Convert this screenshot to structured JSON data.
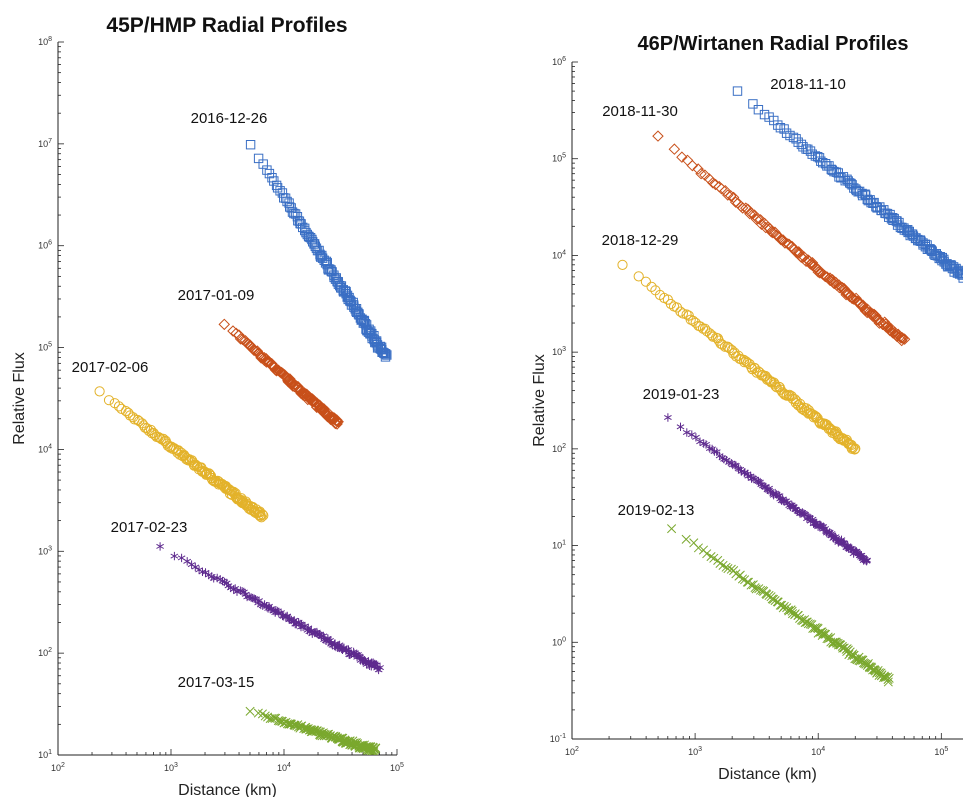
{
  "chart_data": [
    {
      "type": "scatter",
      "title": "45P/HMP Radial Profiles",
      "xlabel": "Distance (km)",
      "ylabel": "Relative Flux",
      "xscale": "log",
      "yscale": "log",
      "xlim": [
        100,
        100000
      ],
      "ylim": [
        10,
        100000000
      ],
      "xticks": [
        {
          "v": 100,
          "e": "2"
        },
        {
          "v": 1000,
          "e": "3"
        },
        {
          "v": 10000,
          "e": "4"
        },
        {
          "v": 100000,
          "e": "5"
        }
      ],
      "yticks": [
        {
          "v": 10,
          "e": "1"
        },
        {
          "v": 100,
          "e": "2"
        },
        {
          "v": 1000,
          "e": "3"
        },
        {
          "v": 10000,
          "e": "4"
        },
        {
          "v": 100000,
          "e": "5"
        },
        {
          "v": 1000000,
          "e": "6"
        },
        {
          "v": 10000000,
          "e": "7"
        },
        {
          "v": 100000000,
          "e": "8"
        }
      ],
      "grid": false,
      "series": [
        {
          "name": "2016-12-26",
          "marker": "square",
          "color": "#3a6fc4",
          "x_start": 5000,
          "x_end": 80000,
          "y_start": 10000000,
          "y_end": 80000
        },
        {
          "name": "2017-01-09",
          "marker": "diamond",
          "color": "#c8501a",
          "x_start": 3000,
          "x_end": 30000,
          "y_start": 170000,
          "y_end": 18000
        },
        {
          "name": "2017-02-06",
          "marker": "circle",
          "color": "#e3b22a",
          "x_start": 230,
          "x_end": 6500,
          "y_start": 37000,
          "y_end": 2200
        },
        {
          "name": "2017-02-23",
          "marker": "star",
          "color": "#5e2a8e",
          "x_start": 800,
          "x_end": 70000,
          "y_start": 1100,
          "y_end": 70
        },
        {
          "name": "2017-03-15",
          "marker": "x",
          "color": "#7aa82e",
          "x_start": 5000,
          "x_end": 65000,
          "y_start": 27,
          "y_end": 11
        }
      ]
    },
    {
      "type": "scatter",
      "title": "46P/Wirtanen Radial Profiles",
      "xlabel": "Distance (km)",
      "ylabel": "Relative Flux",
      "xscale": "log",
      "yscale": "log",
      "xlim": [
        100,
        150000
      ],
      "ylim": [
        0.1,
        1000000
      ],
      "xticks": [
        {
          "v": 100,
          "e": "2"
        },
        {
          "v": 1000,
          "e": "3"
        },
        {
          "v": 10000,
          "e": "4"
        },
        {
          "v": 100000,
          "e": "5"
        }
      ],
      "yticks": [
        {
          "v": 0.1,
          "e": "-1"
        },
        {
          "v": 1,
          "e": "0"
        },
        {
          "v": 10,
          "e": "1"
        },
        {
          "v": 100,
          "e": "2"
        },
        {
          "v": 1000,
          "e": "3"
        },
        {
          "v": 10000,
          "e": "4"
        },
        {
          "v": 100000,
          "e": "5"
        },
        {
          "v": 1000000,
          "e": "6"
        }
      ],
      "grid": false,
      "series": [
        {
          "name": "2018-11-10",
          "marker": "square",
          "color": "#3a6fc4",
          "x_start": 2200,
          "x_end": 150000,
          "y_start": 500000,
          "y_end": 6000
        },
        {
          "name": "2018-11-30",
          "marker": "diamond",
          "color": "#c8501a",
          "x_start": 500,
          "x_end": 50000,
          "y_start": 170000,
          "y_end": 1300
        },
        {
          "name": "2018-12-29",
          "marker": "circle",
          "color": "#e3b22a",
          "x_start": 260,
          "x_end": 20000,
          "y_start": 8000,
          "y_end": 100
        },
        {
          "name": "2019-01-23",
          "marker": "star",
          "color": "#5e2a8e",
          "x_start": 600,
          "x_end": 25000,
          "y_start": 210,
          "y_end": 7
        },
        {
          "name": "2019-02-13",
          "marker": "x",
          "color": "#7aa82e",
          "x_start": 650,
          "x_end": 38000,
          "y_start": 15,
          "y_end": 0.4
        }
      ]
    }
  ]
}
